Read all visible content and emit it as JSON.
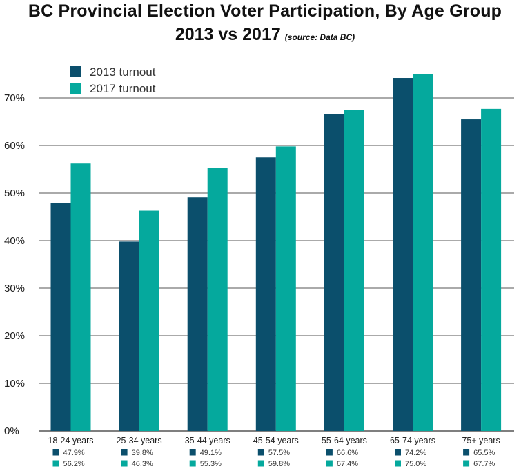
{
  "title": "BC Provincial Election Voter Participation, By Age Group",
  "subtitle": "2013 vs 2017",
  "source_note": "(source: Data BC)",
  "colors": {
    "s2013": "#0b4f6c",
    "s2017": "#05a99d",
    "grid": "#555555"
  },
  "chart_data": {
    "type": "bar",
    "title": "BC Provincial Election Voter Participation, By Age Group",
    "subtitle": "2013 vs 2017",
    "categories": [
      "18-24 years",
      "25-34 years",
      "35-44 years",
      "45-54 years",
      "55-64 years",
      "65-74 years",
      "75+ years"
    ],
    "series": [
      {
        "name": "2013 turnout",
        "values": [
          47.9,
          39.8,
          49.1,
          57.5,
          66.6,
          74.2,
          65.5
        ],
        "labels": [
          "47.9%",
          "39.8%",
          "49.1%",
          "57.5%",
          "66.6%",
          "74.2%",
          "65.5%"
        ]
      },
      {
        "name": "2017 turnout",
        "values": [
          56.2,
          46.3,
          55.3,
          59.8,
          67.4,
          75.0,
          67.7
        ],
        "labels": [
          "56.2%",
          "46.3%",
          "55.3%",
          "59.8%",
          "67.4%",
          "75.0%",
          "67.7%"
        ]
      }
    ],
    "yticks": [
      0,
      10,
      20,
      30,
      40,
      50,
      60,
      70
    ],
    "ytick_labels": [
      "0%",
      "10%",
      "20%",
      "30%",
      "40%",
      "50%",
      "60%",
      "70%"
    ],
    "ylim": [
      0,
      78
    ],
    "grid": true,
    "legend_position": "top-left"
  }
}
